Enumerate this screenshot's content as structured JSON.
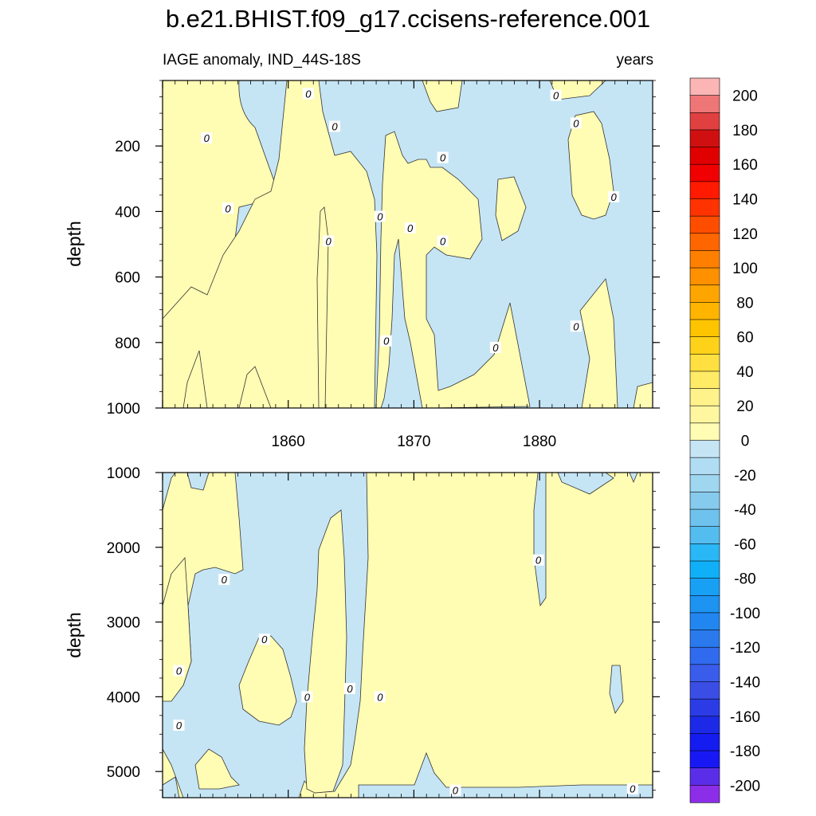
{
  "chart_data": {
    "type": "heatmap",
    "title": "b.e21.BHIST.f09_g17.ccisens-reference.001",
    "subtitle_left": "IAGE anomaly, IND_44S-18S",
    "subtitle_right": "years",
    "x": {
      "range": [
        1850,
        1889
      ],
      "ticks": [
        1860,
        1870,
        1880
      ]
    },
    "colors": {
      "positive_fill": "#fffcb3",
      "negative_fill": "#c5e5f5",
      "contour_line": "#333333"
    },
    "panels": [
      {
        "id": "upper",
        "ylabel": "depth",
        "yrange": [
          0,
          1000
        ],
        "yticks": [
          200,
          400,
          600,
          800,
          1000
        ],
        "contour_labels": [
          {
            "text": "0",
            "x": 1861.6,
            "depth": 40
          },
          {
            "text": "0",
            "x": 1853.5,
            "depth": 175
          },
          {
            "text": "0",
            "x": 1863.7,
            "depth": 140
          },
          {
            "text": "0",
            "x": 1855.2,
            "depth": 390
          },
          {
            "text": "0",
            "x": 1863.2,
            "depth": 490
          },
          {
            "text": "0",
            "x": 1867.3,
            "depth": 415
          },
          {
            "text": "0",
            "x": 1869.7,
            "depth": 450
          },
          {
            "text": "0",
            "x": 1872.3,
            "depth": 235
          },
          {
            "text": "0",
            "x": 1872.3,
            "depth": 490
          },
          {
            "text": "0",
            "x": 1867.8,
            "depth": 795
          },
          {
            "text": "0",
            "x": 1876.5,
            "depth": 815
          },
          {
            "text": "0",
            "x": 1881.3,
            "depth": 45
          },
          {
            "text": "0",
            "x": 1882.9,
            "depth": 130
          },
          {
            "text": "0",
            "x": 1885.9,
            "depth": 355
          },
          {
            "text": "0",
            "x": 1882.9,
            "depth": 750
          }
        ]
      },
      {
        "id": "lower",
        "ylabel": "depth",
        "yrange": [
          1000,
          5350
        ],
        "yticks": [
          1000,
          2000,
          3000,
          4000,
          5000
        ],
        "contour_labels": [
          {
            "text": "0",
            "x": 1851.3,
            "depth": 3650
          },
          {
            "text": "0",
            "x": 1851.3,
            "depth": 4380
          },
          {
            "text": "0",
            "x": 1854.9,
            "depth": 2430
          },
          {
            "text": "0",
            "x": 1858.1,
            "depth": 3230
          },
          {
            "text": "0",
            "x": 1861.5,
            "depth": 4000
          },
          {
            "text": "0",
            "x": 1864.9,
            "depth": 3890
          },
          {
            "text": "0",
            "x": 1867.3,
            "depth": 4000
          },
          {
            "text": "0",
            "x": 1879.9,
            "depth": 2170
          },
          {
            "text": "0",
            "x": 1873.3,
            "depth": 5250
          },
          {
            "text": "0",
            "x": 1887.4,
            "depth": 5230
          }
        ]
      }
    ],
    "colorbar": {
      "labels": [
        "200",
        "180",
        "160",
        "140",
        "120",
        "100",
        "80",
        "60",
        "40",
        "20",
        "0",
        "-20",
        "-40",
        "-60",
        "-80",
        "-100",
        "-120",
        "-140",
        "-160",
        "-180",
        "-200"
      ],
      "swatches": [
        "#fbb5b5",
        "#ef7676",
        "#e04040",
        "#d01010",
        "#e00000",
        "#f00000",
        "#ff1a00",
        "#ff3300",
        "#ff4d00",
        "#ff6600",
        "#ff8000",
        "#ff9000",
        "#ffa500",
        "#ffb500",
        "#ffc400",
        "#ffd21a",
        "#ffe040",
        "#ffeb66",
        "#fff28a",
        "#fff6a0",
        "#fffcb3",
        "#c5e5f5",
        "#b0ddf3",
        "#9fd6f0",
        "#86cbee",
        "#6ec3ee",
        "#54bdf0",
        "#2ab7f5",
        "#10b0f8",
        "#18a0f5",
        "#1d93f2",
        "#2286f0",
        "#2a7aee",
        "#306aee",
        "#3a5cea",
        "#3a4ee6",
        "#2b3ce6",
        "#1c2ae8",
        "#141cf0",
        "#1818f5",
        "#5a2ee8",
        "#8c2ee8"
      ]
    }
  }
}
